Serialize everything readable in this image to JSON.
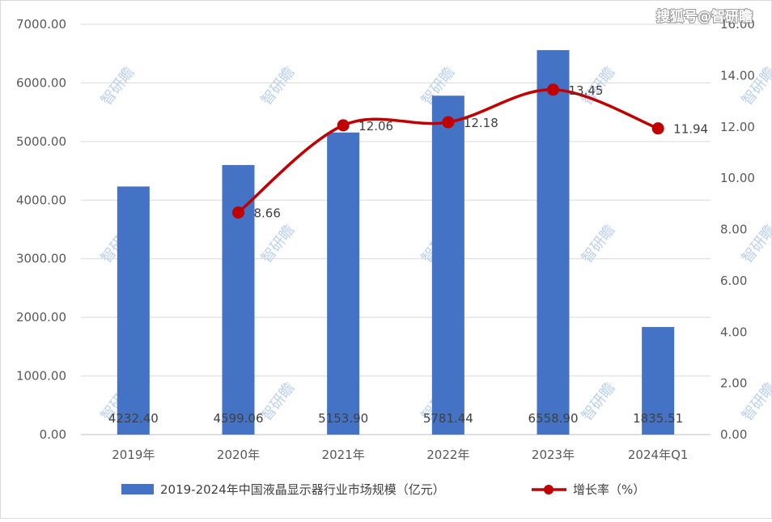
{
  "watermark_text": "智研瞻",
  "corner_watermark": "搜狐号@智研瞻",
  "colors": {
    "bar": "#4472C4",
    "line": "#C00000",
    "grid": "#D9D9D9",
    "axis_text": "#595959"
  },
  "chart_data": {
    "type": "bar",
    "categories": [
      "2019年",
      "2020年",
      "2021年",
      "2022年",
      "2023年",
      "2024年Q1"
    ],
    "series": [
      {
        "name": "2019-2024年中国液晶显示器行业市场规模（亿元）",
        "type": "bar",
        "axis": "left",
        "values": [
          4232.4,
          4599.06,
          5153.9,
          5781.44,
          6558.9,
          1835.51
        ],
        "labels": [
          "4232.40",
          "4599.06",
          "5153.90",
          "5781.44",
          "6558.90",
          "1835.51"
        ]
      },
      {
        "name": "增长率（%）",
        "type": "line",
        "axis": "right",
        "smooth": true,
        "values": [
          null,
          8.66,
          12.06,
          12.18,
          13.45,
          11.94
        ],
        "labels": [
          "",
          "8.66",
          "12.06",
          "12.18",
          "13.45",
          "11.94"
        ]
      }
    ],
    "y_left": {
      "ylim": [
        0,
        7000
      ],
      "ticks": [
        "0.00",
        "1000.00",
        "2000.00",
        "3000.00",
        "4000.00",
        "5000.00",
        "6000.00",
        "7000.00"
      ]
    },
    "y_right": {
      "ylim": [
        0,
        16
      ],
      "ticks": [
        "0.00",
        "2.00",
        "4.00",
        "6.00",
        "8.00",
        "10.00",
        "12.00",
        "14.00",
        "16.00"
      ]
    },
    "grid": true,
    "legend_position": "bottom"
  }
}
